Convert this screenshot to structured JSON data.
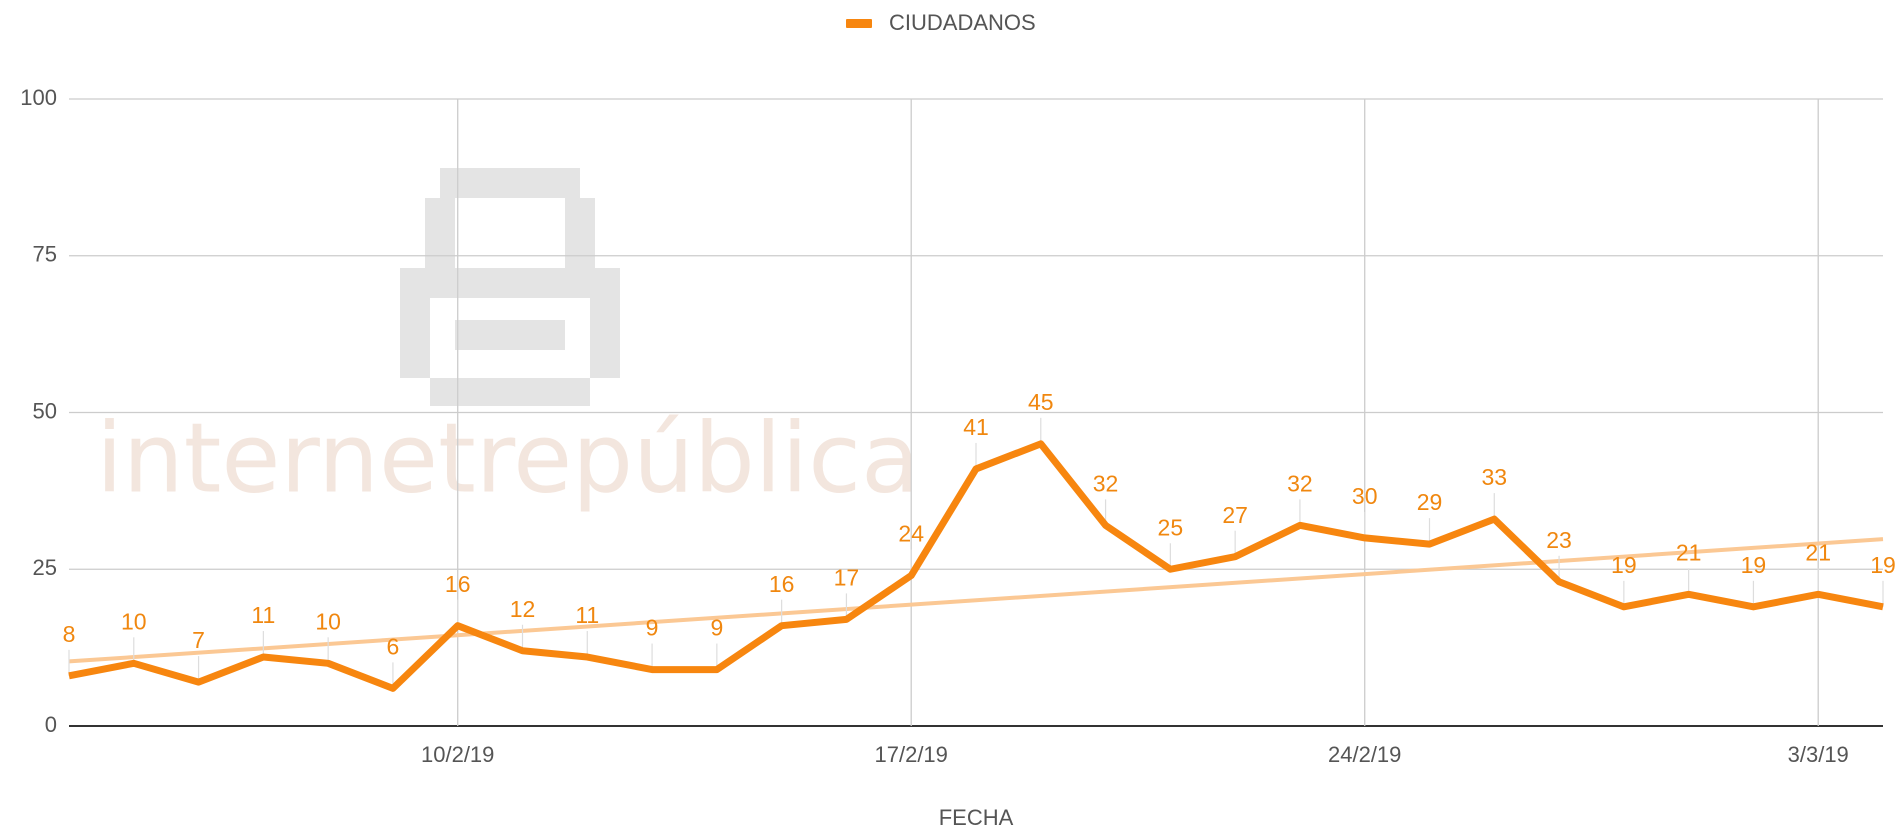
{
  "chart_data": {
    "type": "line",
    "legend": "top",
    "x_label": "FECHA",
    "watermark": "internetrepública",
    "categories": [
      "",
      "",
      "",
      "",
      "",
      "",
      "10/2/19",
      "",
      "",
      "",
      "",
      "",
      "",
      "17/2/19",
      "",
      "",
      "",
      "",
      "",
      "",
      "24/2/19",
      "",
      "",
      "",
      "",
      "",
      "",
      "3/3/19",
      ""
    ],
    "series": [
      {
        "name": "CIUDADANOS",
        "color": "#f7860f",
        "values": [
          8,
          10,
          7,
          11,
          10,
          6,
          16,
          12,
          11,
          9,
          9,
          16,
          17,
          24,
          41,
          45,
          32,
          25,
          27,
          32,
          30,
          29,
          33,
          23,
          19,
          21,
          19,
          21,
          19
        ]
      }
    ],
    "trendline": {
      "color": "#fbc894",
      "start": 10.3,
      "end": 29.8
    },
    "ylim": [
      0,
      100
    ],
    "yticks": [
      0,
      25,
      50,
      75,
      100
    ],
    "grid": true
  }
}
